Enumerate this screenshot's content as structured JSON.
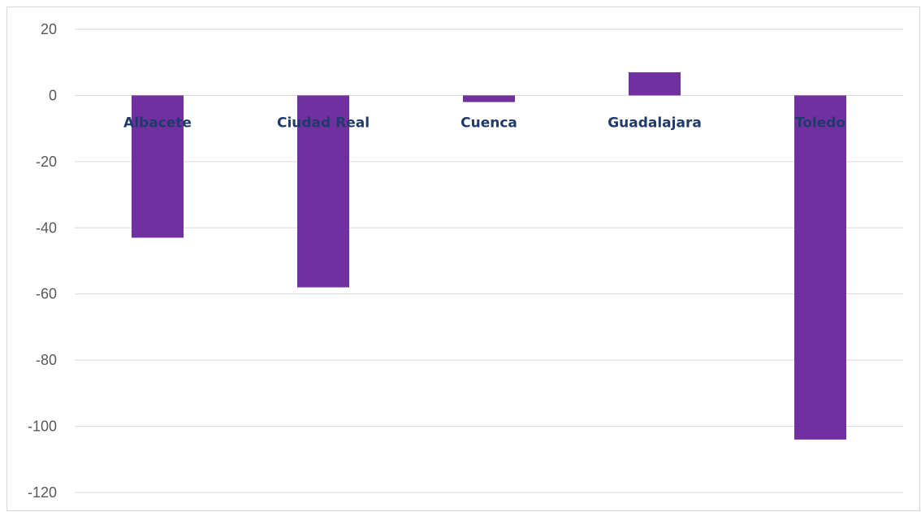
{
  "chart_data": {
    "type": "bar",
    "categories": [
      "Albacete",
      "Ciudad Real",
      "Cuenca",
      "Guadalajara",
      "Toledo"
    ],
    "values": [
      -43,
      -58,
      -2,
      7,
      -104
    ],
    "ylim": [
      -120,
      20
    ],
    "yticks": [
      20,
      0,
      -20,
      -40,
      -60,
      -80,
      -100,
      -120
    ],
    "title": "",
    "xlabel": "",
    "ylabel": "",
    "grid": true,
    "legend": "none",
    "bar_color": "#7030a0",
    "category_label_color": "#1f3a6b"
  }
}
